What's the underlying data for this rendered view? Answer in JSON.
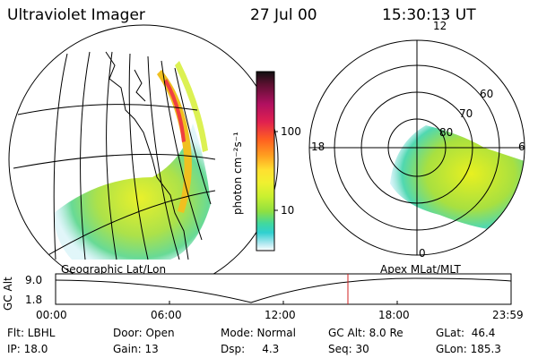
{
  "header": {
    "instrument": "Ultraviolet Imager",
    "date": "27 Jul 00",
    "time": "15:30:13 UT"
  },
  "colorbar": {
    "unit_label": "photon cm⁻²s⁻¹",
    "ticks": [
      "100",
      "10"
    ],
    "colors": [
      "#101010",
      "#5a1030",
      "#b01060",
      "#e02050",
      "#ff6020",
      "#ffa020",
      "#ffe030",
      "#f0f030",
      "#c8f030",
      "#90e040",
      "#40d8a0",
      "#30d0d0",
      "#b0e8f0",
      "#ffffff"
    ]
  },
  "left_panel": {
    "label": "Geographic Lat/Lon"
  },
  "right_panel": {
    "label": "Apex MLat/MLT",
    "mlt_labels": [
      "12",
      "18",
      "6",
      "0"
    ],
    "lat_labels": [
      "60",
      "70",
      "80"
    ]
  },
  "altitude_plot": {
    "ylabel": "GC Alt",
    "yticks": [
      "9.0",
      "1.8"
    ],
    "xticks": [
      "00:00",
      "06:00",
      "12:00",
      "18:00",
      "23:59"
    ],
    "marker_color": "#d02020"
  },
  "status": {
    "row1": {
      "flt": "Flt: LBHL",
      "door": "Door: Open",
      "mode": "Mode: Normal",
      "gc_alt": "GC Alt: 8.0 Re",
      "glat": "GLat:  46.4"
    },
    "row2": {
      "ip": "IP: 18.0",
      "gain": "Gain: 13",
      "dsp": "Dsp:     4.3",
      "seq": "Seq: 30",
      "glon": "GLon: 185.3"
    }
  }
}
